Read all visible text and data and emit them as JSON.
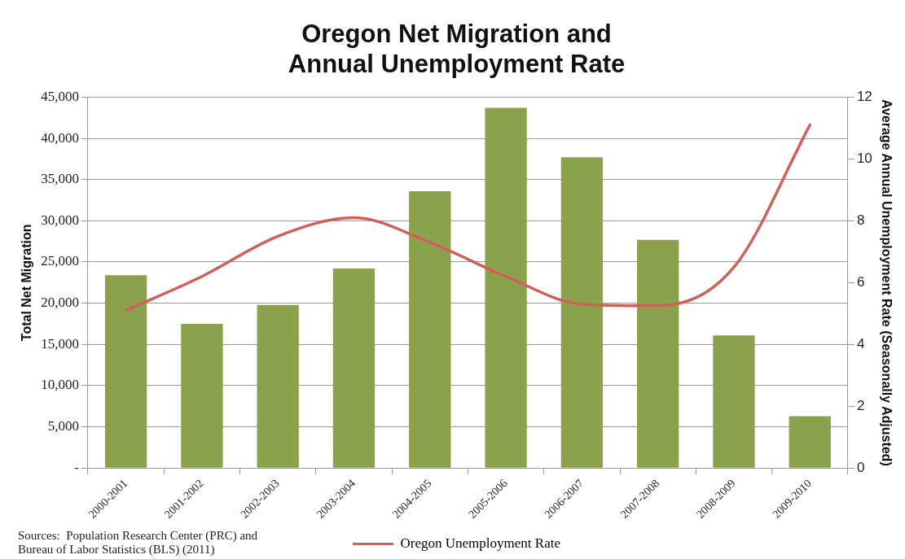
{
  "chart_data": {
    "type": "bar",
    "title": "Oregon Net Migration and Annual Unemployment Rate",
    "ylabel": "Total Net Migration",
    "y2label": "Average Annual Unemployment Rate (Seasonally Adjusted)",
    "categories": [
      "2000-2001",
      "2001-2002",
      "2002-2003",
      "2003-2004",
      "2004-2005",
      "2005-2006",
      "2006-2007",
      "2007-2008",
      "2008-2009",
      "2009-2010"
    ],
    "series": [
      {
        "color": "#8aa24c",
        "values": [
          23400,
          17500,
          19800,
          24200,
          33600,
          43700,
          37700,
          27700,
          16100,
          6300
        ]
      },
      {
        "type": "line",
        "name": "Oregon Unemployment Rate",
        "color": "#d0605a",
        "axis": "y2",
        "values": [
          5.1,
          6.2,
          7.5,
          8.1,
          7.3,
          6.2,
          5.3,
          5.25,
          6.5,
          11.1
        ]
      }
    ],
    "ylim": [
      0,
      45000
    ],
    "yticks": [
      {
        "value": 0,
        "label": "-"
      },
      {
        "value": 5000,
        "label": "5,000"
      },
      {
        "value": 10000,
        "label": "10,000"
      },
      {
        "value": 15000,
        "label": "15,000"
      },
      {
        "value": 20000,
        "label": "20,000"
      },
      {
        "value": 25000,
        "label": "25,000"
      },
      {
        "value": 30000,
        "label": "30,000"
      },
      {
        "value": 35000,
        "label": "35,000"
      },
      {
        "value": 40000,
        "label": "40,000"
      },
      {
        "value": 45000,
        "label": "45,000"
      }
    ],
    "y2lim": [
      0,
      12
    ],
    "y2ticks": [
      0,
      2,
      4,
      6,
      8,
      10,
      12
    ],
    "grid": "y",
    "legend": "bottom",
    "marker": "none",
    "line_style": "solid",
    "annotations": [
      "Sources:  Population Research Center (PRC) and Bureau of Labor Statistics (BLS) (2011)"
    ]
  }
}
